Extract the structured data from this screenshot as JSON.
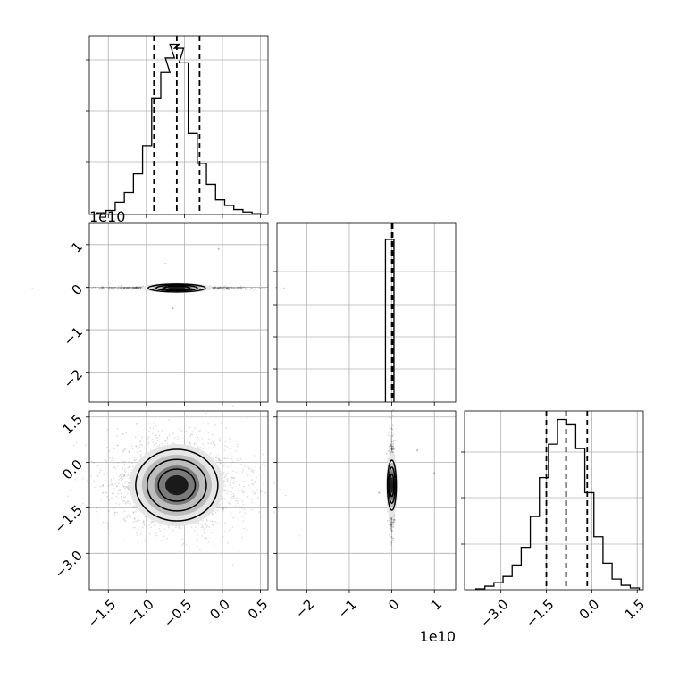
{
  "chart_data": [
    {
      "type": "histogram",
      "panel": "param1_marginal",
      "xlim": [
        -1.75,
        0.6
      ],
      "grid": true,
      "bin_centers": [
        -1.59,
        -1.47,
        -1.35,
        -1.23,
        -1.11,
        -0.99,
        -0.87,
        -0.75,
        -0.69,
        -0.63,
        -0.57,
        -0.51,
        -0.39,
        -0.27,
        -0.15,
        -0.03,
        0.09,
        0.21,
        0.33,
        0.45
      ],
      "counts": [
        2,
        5,
        15,
        27,
        50,
        85,
        143,
        175,
        193,
        210,
        205,
        187,
        100,
        63,
        37,
        18,
        11,
        6,
        3,
        1
      ],
      "quantiles": [
        -0.9,
        -0.6,
        -0.3
      ]
    },
    {
      "type": "scatter",
      "panel": "param2_vs_param1",
      "xlim": [
        -1.75,
        0.6
      ],
      "ylim": [
        -27000000000.0,
        15000000000.0
      ],
      "y_ticks": [
        "1",
        "0",
        "−1",
        "−2"
      ],
      "y_offset_text": "1e10",
      "grid": true,
      "center": [
        -0.6,
        -200000000.0
      ],
      "contour_levels": 3
    },
    {
      "type": "histogram",
      "panel": "param2_marginal",
      "xlim": [
        -27000000000.0,
        15000000000.0
      ],
      "grid": true,
      "bin_centers": [
        -2000000000.0,
        500000000.0
      ],
      "counts": [
        1,
        1
      ],
      "quantiles": [
        0.0,
        200000000.0
      ]
    },
    {
      "type": "scatter",
      "panel": "param3_vs_param1",
      "xlim": [
        -1.75,
        0.6
      ],
      "ylim": [
        -4.2,
        1.7
      ],
      "x_ticks": [
        "−1.5",
        "−1.0",
        "−0.5",
        "0.0",
        "0.5"
      ],
      "y_ticks": [
        "1.5",
        "0.0",
        "−1.5",
        "−3.0"
      ],
      "grid": true,
      "center": [
        -0.6,
        -0.75
      ],
      "contour_levels": 3
    },
    {
      "type": "scatter",
      "panel": "param3_vs_param2",
      "xlim": [
        -27000000000.0,
        15000000000.0
      ],
      "ylim": [
        -4.2,
        1.7
      ],
      "x_ticks": [
        "−2",
        "−1",
        "0",
        "1"
      ],
      "x_offset_text": "1e10",
      "grid": true,
      "center": [
        0.0,
        -0.75
      ],
      "contour_levels": 3
    },
    {
      "type": "histogram",
      "panel": "param3_marginal",
      "xlim": [
        -4.2,
        1.7
      ],
      "x_ticks": [
        "−3.0",
        "−1.5",
        "0.0",
        "1.5"
      ],
      "grid": true,
      "bin_centers": [
        -3.68,
        -3.38,
        -3.08,
        -2.78,
        -2.48,
        -2.18,
        -1.88,
        -1.58,
        -1.28,
        -0.98,
        -0.68,
        -0.38,
        -0.08,
        0.22,
        0.52,
        0.82,
        1.12,
        1.42
      ],
      "counts": [
        1,
        4,
        8,
        15,
        28,
        48,
        83,
        127,
        165,
        193,
        187,
        160,
        110,
        60,
        30,
        12,
        5,
        2
      ],
      "quantiles": [
        -1.5,
        -0.85,
        -0.15
      ]
    }
  ]
}
